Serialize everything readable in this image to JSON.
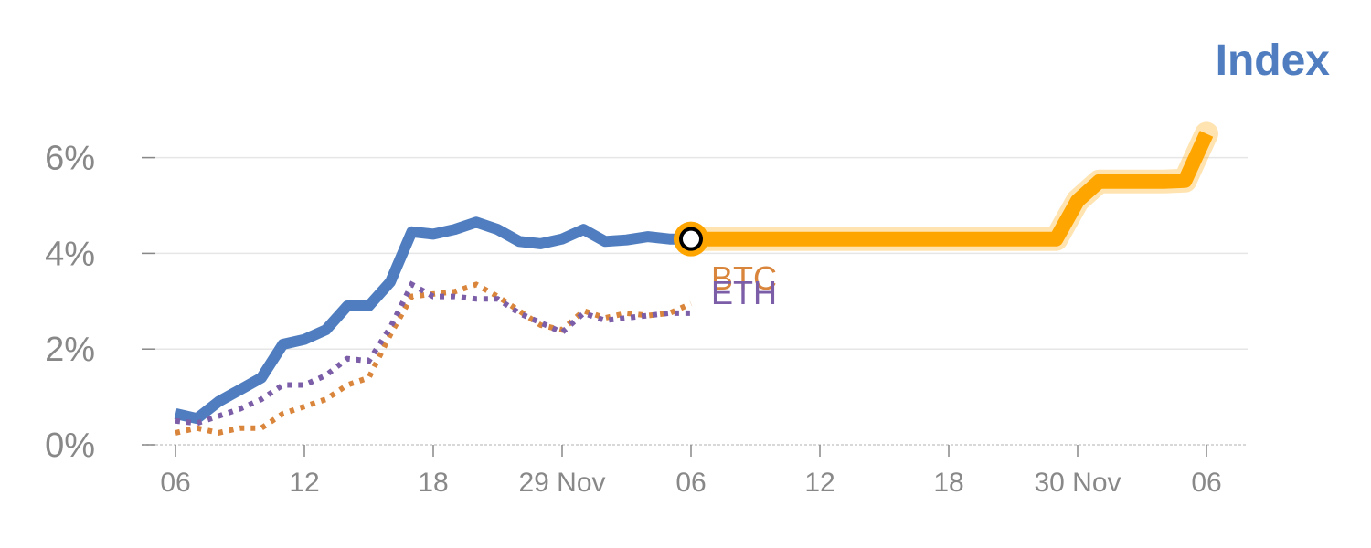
{
  "chart_data": {
    "type": "line",
    "title": "Index",
    "xlabel": "",
    "ylabel": "",
    "ylim": [
      0,
      7
    ],
    "y_ticks": [
      {
        "value": 0,
        "label": "0%"
      },
      {
        "value": 2,
        "label": "2%"
      },
      {
        "value": 4,
        "label": "4%"
      },
      {
        "value": 6,
        "label": "6%"
      }
    ],
    "x_ticks": [
      {
        "x": 0,
        "label": "06"
      },
      {
        "x": 6,
        "label": "12"
      },
      {
        "x": 12,
        "label": "18"
      },
      {
        "x": 18,
        "label": "29 Nov"
      },
      {
        "x": 24,
        "label": "06"
      },
      {
        "x": 30,
        "label": "12"
      },
      {
        "x": 36,
        "label": "18"
      },
      {
        "x": 42,
        "label": "30 Nov"
      },
      {
        "x": 48,
        "label": "06"
      }
    ],
    "grid": true,
    "series": [
      {
        "name": "Index",
        "color": "#4f7dbf",
        "style": "solid",
        "x": [
          0,
          1,
          2,
          3,
          4,
          5,
          6,
          7,
          8,
          9,
          10,
          11,
          12,
          13,
          14,
          15,
          16,
          17,
          18,
          19,
          20,
          21,
          22,
          23,
          24
        ],
        "values": [
          0.65,
          0.55,
          0.9,
          1.15,
          1.4,
          2.1,
          2.2,
          2.4,
          2.9,
          2.9,
          3.4,
          4.45,
          4.4,
          4.5,
          4.65,
          4.5,
          4.25,
          4.2,
          4.3,
          4.5,
          4.25,
          4.28,
          4.35,
          4.3,
          4.3
        ]
      },
      {
        "name": "BTC",
        "color": "#d9853b",
        "style": "dotted",
        "x": [
          0,
          1,
          2,
          3,
          4,
          5,
          6,
          7,
          8,
          9,
          10,
          11,
          12,
          13,
          14,
          15,
          16,
          17,
          18,
          19,
          20,
          21,
          22,
          23,
          24
        ],
        "values": [
          0.25,
          0.35,
          0.25,
          0.35,
          0.35,
          0.65,
          0.8,
          0.95,
          1.25,
          1.4,
          2.3,
          3.1,
          3.15,
          3.2,
          3.35,
          3.1,
          2.8,
          2.5,
          2.4,
          2.8,
          2.65,
          2.75,
          2.7,
          2.75,
          2.95
        ]
      },
      {
        "name": "ETH",
        "color": "#7b5ea7",
        "style": "dotted",
        "x": [
          0,
          1,
          2,
          3,
          4,
          5,
          6,
          7,
          8,
          9,
          10,
          11,
          12,
          13,
          14,
          15,
          16,
          17,
          18,
          19,
          20,
          21,
          22,
          23,
          24
        ],
        "values": [
          0.5,
          0.45,
          0.6,
          0.75,
          0.95,
          1.25,
          1.25,
          1.45,
          1.8,
          1.75,
          2.45,
          3.35,
          3.1,
          3.1,
          3.05,
          3.05,
          2.75,
          2.55,
          2.35,
          2.75,
          2.6,
          2.65,
          2.7,
          2.75,
          2.75
        ]
      },
      {
        "name": "Index (continued)",
        "color": "#ffa500",
        "style": "thick",
        "x": [
          24,
          25,
          26,
          27,
          28,
          29,
          30,
          31,
          32,
          33,
          34,
          35,
          36,
          37,
          38,
          39,
          40,
          41,
          42,
          43,
          44,
          45,
          46,
          47,
          48
        ],
        "values": [
          4.3,
          4.3,
          4.3,
          4.3,
          4.3,
          4.3,
          4.3,
          4.3,
          4.3,
          4.3,
          4.3,
          4.3,
          4.3,
          4.3,
          4.3,
          4.3,
          4.3,
          4.3,
          5.1,
          5.5,
          5.5,
          5.5,
          5.5,
          5.52,
          6.5
        ]
      }
    ],
    "marker": {
      "x": 24,
      "value": 4.3
    },
    "series_labels": [
      {
        "series": "BTC",
        "text": "BTC",
        "color": "#d9853b"
      },
      {
        "series": "ETH",
        "text": "ETH",
        "color": "#7b5ea7"
      }
    ]
  }
}
